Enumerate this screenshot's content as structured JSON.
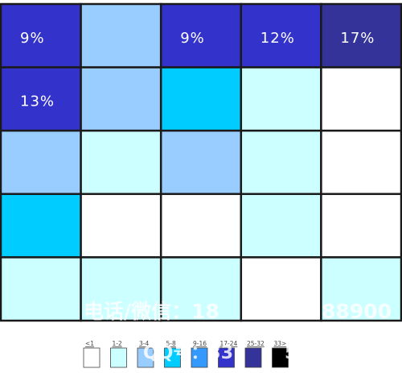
{
  "chart_data": {
    "type": "heatmap",
    "title": "",
    "rows": 5,
    "columns": 5,
    "cells": [
      [
        {
          "bin": 5,
          "label": "9%"
        },
        {
          "bin": 2,
          "label": ""
        },
        {
          "bin": 5,
          "label": "9%"
        },
        {
          "bin": 5,
          "label": "12%"
        },
        {
          "bin": 6,
          "label": "17%"
        }
      ],
      [
        {
          "bin": 5,
          "label": "13%"
        },
        {
          "bin": 2,
          "label": ""
        },
        {
          "bin": 3,
          "label": ""
        },
        {
          "bin": 1,
          "label": ""
        },
        {
          "bin": 0,
          "label": ""
        }
      ],
      [
        {
          "bin": 2,
          "label": ""
        },
        {
          "bin": 1,
          "label": ""
        },
        {
          "bin": 2,
          "label": ""
        },
        {
          "bin": 1,
          "label": ""
        },
        {
          "bin": 0,
          "label": ""
        }
      ],
      [
        {
          "bin": 3,
          "label": ""
        },
        {
          "bin": 0,
          "label": ""
        },
        {
          "bin": 0,
          "label": ""
        },
        {
          "bin": 1,
          "label": ""
        },
        {
          "bin": 0,
          "label": ""
        }
      ],
      [
        {
          "bin": 1,
          "label": ""
        },
        {
          "bin": 1,
          "label": ""
        },
        {
          "bin": 1,
          "label": ""
        },
        {
          "bin": 0,
          "label": ""
        },
        {
          "bin": 1,
          "label": ""
        }
      ]
    ],
    "legend": [
      {
        "label": "<1",
        "color": "#ffffff"
      },
      {
        "label": "1-2",
        "color": "#ccffff"
      },
      {
        "label": "3-4",
        "color": "#99ccff"
      },
      {
        "label": "5-8",
        "color": "#00ccff"
      },
      {
        "label": "9-16",
        "color": "#3399ff"
      },
      {
        "label": "17-24",
        "color": "#3333cc"
      },
      {
        "label": "25-32",
        "color": "#333399"
      },
      {
        "label": "33>",
        "color": "#000000"
      }
    ],
    "legend_placement": "bottom-center"
  },
  "watermark": {
    "line1": "电话/微信：18",
    "line1_tail": "88900",
    "line2": "QQ号：33",
    "line2_tail": "5"
  }
}
